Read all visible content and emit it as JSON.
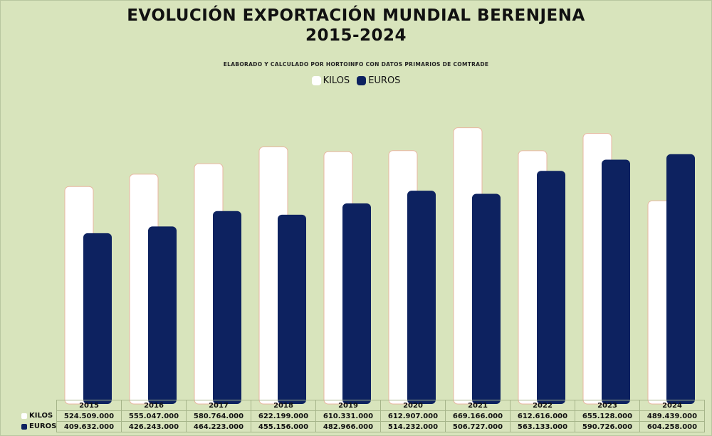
{
  "chart_data": {
    "type": "bar",
    "title_line1": "EVOLUCIÓN EXPORTACIÓN MUNDIAL BERENJENA",
    "title_line2": "2015-2024",
    "subtitle": "ELABORADO Y CALCULADO POR HORTOINFO CON DATOS PRIMARIOS DE COMTRADE",
    "categories": [
      "2015",
      "2016",
      "2017",
      "2018",
      "2019",
      "2020",
      "2021",
      "2022",
      "2023",
      "2024"
    ],
    "series": [
      {
        "name": "KILOS",
        "color": "#ffffff",
        "values": [
          524509000,
          555047000,
          580764000,
          622199000,
          610331000,
          612907000,
          669166000,
          612616000,
          655128000,
          489439000
        ],
        "labels": [
          "524.509.000",
          "555.047.000",
          "580.764.000",
          "622.199.000",
          "610.331.000",
          "612.907.000",
          "669.166.000",
          "612.616.000",
          "655.128.000",
          "489.439.000"
        ]
      },
      {
        "name": "EUROS",
        "color": "#0d2260",
        "values": [
          409632000,
          426243000,
          464223000,
          455156000,
          482966000,
          514232000,
          506727000,
          563133000,
          590726000,
          604258000
        ],
        "labels": [
          "409.632.000",
          "426.243.000",
          "464.223.000",
          "455.156.000",
          "482.966.000",
          "514.232.000",
          "506.727.000",
          "563.133.000",
          "590.726.000",
          "604.258.000"
        ]
      }
    ],
    "ylim": [
      0,
      700000000
    ],
    "grid": false,
    "legend_position": "top-center",
    "data_table": true
  }
}
